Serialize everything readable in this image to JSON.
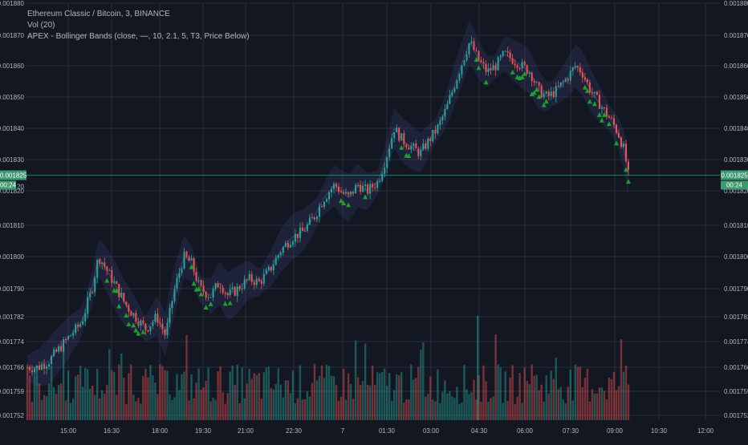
{
  "chart_data": {
    "type": "candlestick",
    "legend": [
      "Ethereum Classic / Bitcoin, 3, BINANCE",
      "Vol (20)",
      "APEX - Bollinger Bands (close, —, 10, 2.1, 5, T3, Price Below)"
    ],
    "y_ticks": [
      "0.001880",
      "0.001870",
      "0.001860",
      "0.001850",
      "0.001840",
      "0.001830",
      "0.001820",
      "0.001810",
      "0.001800",
      "0.001790",
      "0.001782",
      "0.001774",
      "0.001766",
      "0.001759",
      "0.001752"
    ],
    "x_ticks": [
      "15:00",
      "16:30",
      "18:00",
      "19:30",
      "21:00",
      "22:30",
      "7",
      "01:30",
      "03:00",
      "04:30",
      "06:00",
      "07:30",
      "09:00",
      "10:30",
      "12:00"
    ],
    "ylim": [
      0.00175,
      0.00188
    ],
    "last_price": "0.001825",
    "countdown": "00:24",
    "countdown_partial_label": "20",
    "price_path": [
      [
        0,
        0.001766
      ],
      [
        10,
        0.001766
      ],
      [
        20,
        0.001768
      ],
      [
        30,
        0.001772
      ],
      [
        40,
        0.001776
      ],
      [
        50,
        0.00178
      ],
      [
        60,
        0.00179
      ],
      [
        66,
        0.0018
      ],
      [
        70,
        0.001798
      ],
      [
        80,
        0.001792
      ],
      [
        90,
        0.001786
      ],
      [
        100,
        0.001782
      ],
      [
        110,
        0.001778
      ],
      [
        120,
        0.001782
      ],
      [
        128,
        0.001776
      ],
      [
        135,
        0.001788
      ],
      [
        145,
        0.0018
      ],
      [
        152,
        0.001798
      ],
      [
        160,
        0.00179
      ],
      [
        170,
        0.001788
      ],
      [
        178,
        0.001792
      ],
      [
        186,
        0.001788
      ],
      [
        195,
        0.00179
      ],
      [
        205,
        0.001793
      ],
      [
        215,
        0.001792
      ],
      [
        225,
        0.001796
      ],
      [
        235,
        0.001802
      ],
      [
        245,
        0.001806
      ],
      [
        255,
        0.001808
      ],
      [
        265,
        0.001812
      ],
      [
        275,
        0.001818
      ],
      [
        285,
        0.001822
      ],
      [
        290,
        0.00182
      ],
      [
        298,
        0.001818
      ],
      [
        306,
        0.001822
      ],
      [
        315,
        0.00182
      ],
      [
        325,
        0.001823
      ],
      [
        332,
        0.00183
      ],
      [
        340,
        0.00184
      ],
      [
        348,
        0.001836
      ],
      [
        356,
        0.001834
      ],
      [
        364,
        0.001832
      ],
      [
        372,
        0.001836
      ],
      [
        380,
        0.00184
      ],
      [
        388,
        0.001846
      ],
      [
        396,
        0.001854
      ],
      [
        404,
        0.001862
      ],
      [
        410,
        0.001868
      ],
      [
        418,
        0.001862
      ],
      [
        426,
        0.001858
      ],
      [
        434,
        0.00186
      ],
      [
        442,
        0.001864
      ],
      [
        450,
        0.001862
      ],
      [
        458,
        0.00186
      ],
      [
        466,
        0.001858
      ],
      [
        474,
        0.001852
      ],
      [
        482,
        0.00185
      ],
      [
        490,
        0.001852
      ],
      [
        500,
        0.001856
      ],
      [
        508,
        0.00186
      ],
      [
        514,
        0.001858
      ],
      [
        522,
        0.001852
      ],
      [
        530,
        0.001848
      ],
      [
        536,
        0.001845
      ],
      [
        542,
        0.001842
      ],
      [
        548,
        0.001838
      ],
      [
        553,
        0.001833
      ],
      [
        557,
        0.001825
      ]
    ]
  }
}
